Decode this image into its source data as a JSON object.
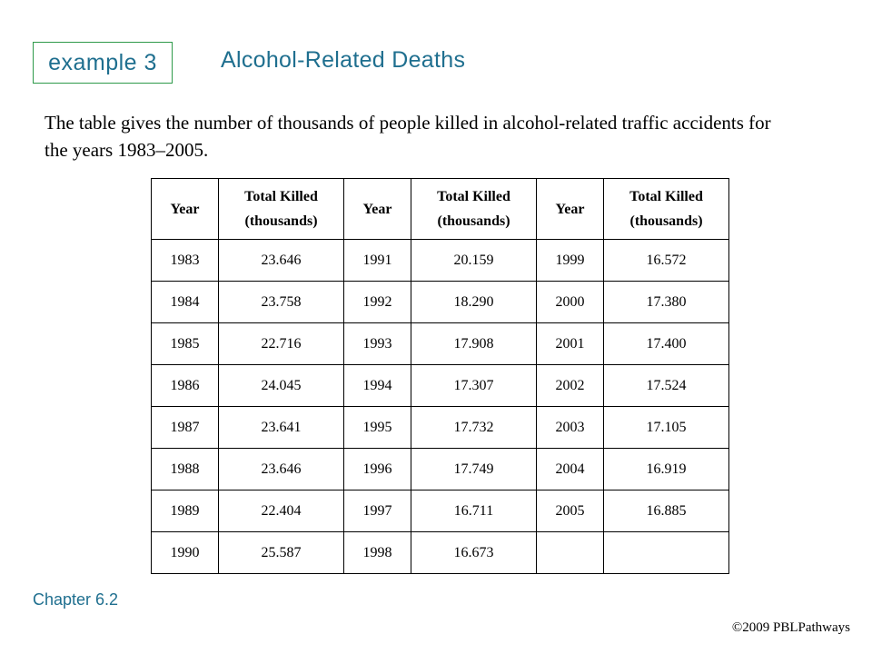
{
  "header": {
    "example_label": "example 3",
    "title": "Alcohol-Related Deaths"
  },
  "intro_text": "The table gives the number of thousands of people killed in alcohol-related traffic accidents for the years 1983–2005.",
  "table": {
    "headers": [
      {
        "line1": "Year",
        "line2": ""
      },
      {
        "line1": "Total Killed",
        "line2": "(thousands)"
      },
      {
        "line1": "Year",
        "line2": ""
      },
      {
        "line1": "Total Killed",
        "line2": "(thousands)"
      },
      {
        "line1": "Year",
        "line2": ""
      },
      {
        "line1": "Total Killed",
        "line2": "(thousands)"
      }
    ],
    "rows": [
      [
        "1983",
        "23.646",
        "1991",
        "20.159",
        "1999",
        "16.572"
      ],
      [
        "1984",
        "23.758",
        "1992",
        "18.290",
        "2000",
        "17.380"
      ],
      [
        "1985",
        "22.716",
        "1993",
        "17.908",
        "2001",
        "17.400"
      ],
      [
        "1986",
        "24.045",
        "1994",
        "17.307",
        "2002",
        "17.524"
      ],
      [
        "1987",
        "23.641",
        "1995",
        "17.732",
        "2003",
        "17.105"
      ],
      [
        "1988",
        "23.646",
        "1996",
        "17.749",
        "2004",
        "16.919"
      ],
      [
        "1989",
        "22.404",
        "1997",
        "16.711",
        "2005",
        "16.885"
      ],
      [
        "1990",
        "25.587",
        "1998",
        "16.673",
        "",
        ""
      ]
    ]
  },
  "footer": {
    "chapter": "Chapter 6.2",
    "copyright": "©2009 PBLPathways"
  },
  "colors": {
    "title": "#1f6f8f",
    "box_border": "#2e9a4a"
  }
}
